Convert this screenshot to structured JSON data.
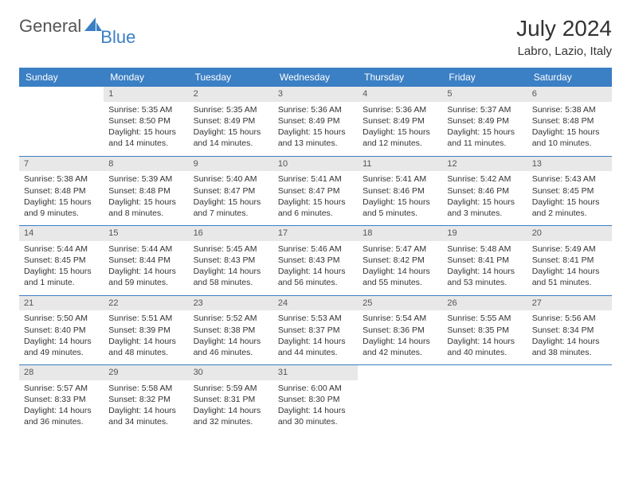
{
  "brand": {
    "text1": "General",
    "text2": "Blue"
  },
  "colors": {
    "header_bg": "#3b7fc4",
    "header_text": "#ffffff",
    "daynum_bg": "#e8e8e8",
    "rule": "#3b7fc4",
    "body_text": "#333333",
    "page_bg": "#ffffff"
  },
  "title": "July 2024",
  "location": "Labro, Lazio, Italy",
  "day_headers": [
    "Sunday",
    "Monday",
    "Tuesday",
    "Wednesday",
    "Thursday",
    "Friday",
    "Saturday"
  ],
  "weeks": [
    [
      {
        "empty": true
      },
      {
        "n": "1",
        "sunrise": "5:35 AM",
        "sunset": "8:50 PM",
        "daylight": "15 hours and 14 minutes."
      },
      {
        "n": "2",
        "sunrise": "5:35 AM",
        "sunset": "8:49 PM",
        "daylight": "15 hours and 14 minutes."
      },
      {
        "n": "3",
        "sunrise": "5:36 AM",
        "sunset": "8:49 PM",
        "daylight": "15 hours and 13 minutes."
      },
      {
        "n": "4",
        "sunrise": "5:36 AM",
        "sunset": "8:49 PM",
        "daylight": "15 hours and 12 minutes."
      },
      {
        "n": "5",
        "sunrise": "5:37 AM",
        "sunset": "8:49 PM",
        "daylight": "15 hours and 11 minutes."
      },
      {
        "n": "6",
        "sunrise": "5:38 AM",
        "sunset": "8:48 PM",
        "daylight": "15 hours and 10 minutes."
      }
    ],
    [
      {
        "n": "7",
        "sunrise": "5:38 AM",
        "sunset": "8:48 PM",
        "daylight": "15 hours and 9 minutes."
      },
      {
        "n": "8",
        "sunrise": "5:39 AM",
        "sunset": "8:48 PM",
        "daylight": "15 hours and 8 minutes."
      },
      {
        "n": "9",
        "sunrise": "5:40 AM",
        "sunset": "8:47 PM",
        "daylight": "15 hours and 7 minutes."
      },
      {
        "n": "10",
        "sunrise": "5:41 AM",
        "sunset": "8:47 PM",
        "daylight": "15 hours and 6 minutes."
      },
      {
        "n": "11",
        "sunrise": "5:41 AM",
        "sunset": "8:46 PM",
        "daylight": "15 hours and 5 minutes."
      },
      {
        "n": "12",
        "sunrise": "5:42 AM",
        "sunset": "8:46 PM",
        "daylight": "15 hours and 3 minutes."
      },
      {
        "n": "13",
        "sunrise": "5:43 AM",
        "sunset": "8:45 PM",
        "daylight": "15 hours and 2 minutes."
      }
    ],
    [
      {
        "n": "14",
        "sunrise": "5:44 AM",
        "sunset": "8:45 PM",
        "daylight": "15 hours and 1 minute."
      },
      {
        "n": "15",
        "sunrise": "5:44 AM",
        "sunset": "8:44 PM",
        "daylight": "14 hours and 59 minutes."
      },
      {
        "n": "16",
        "sunrise": "5:45 AM",
        "sunset": "8:43 PM",
        "daylight": "14 hours and 58 minutes."
      },
      {
        "n": "17",
        "sunrise": "5:46 AM",
        "sunset": "8:43 PM",
        "daylight": "14 hours and 56 minutes."
      },
      {
        "n": "18",
        "sunrise": "5:47 AM",
        "sunset": "8:42 PM",
        "daylight": "14 hours and 55 minutes."
      },
      {
        "n": "19",
        "sunrise": "5:48 AM",
        "sunset": "8:41 PM",
        "daylight": "14 hours and 53 minutes."
      },
      {
        "n": "20",
        "sunrise": "5:49 AM",
        "sunset": "8:41 PM",
        "daylight": "14 hours and 51 minutes."
      }
    ],
    [
      {
        "n": "21",
        "sunrise": "5:50 AM",
        "sunset": "8:40 PM",
        "daylight": "14 hours and 49 minutes."
      },
      {
        "n": "22",
        "sunrise": "5:51 AM",
        "sunset": "8:39 PM",
        "daylight": "14 hours and 48 minutes."
      },
      {
        "n": "23",
        "sunrise": "5:52 AM",
        "sunset": "8:38 PM",
        "daylight": "14 hours and 46 minutes."
      },
      {
        "n": "24",
        "sunrise": "5:53 AM",
        "sunset": "8:37 PM",
        "daylight": "14 hours and 44 minutes."
      },
      {
        "n": "25",
        "sunrise": "5:54 AM",
        "sunset": "8:36 PM",
        "daylight": "14 hours and 42 minutes."
      },
      {
        "n": "26",
        "sunrise": "5:55 AM",
        "sunset": "8:35 PM",
        "daylight": "14 hours and 40 minutes."
      },
      {
        "n": "27",
        "sunrise": "5:56 AM",
        "sunset": "8:34 PM",
        "daylight": "14 hours and 38 minutes."
      }
    ],
    [
      {
        "n": "28",
        "sunrise": "5:57 AM",
        "sunset": "8:33 PM",
        "daylight": "14 hours and 36 minutes."
      },
      {
        "n": "29",
        "sunrise": "5:58 AM",
        "sunset": "8:32 PM",
        "daylight": "14 hours and 34 minutes."
      },
      {
        "n": "30",
        "sunrise": "5:59 AM",
        "sunset": "8:31 PM",
        "daylight": "14 hours and 32 minutes."
      },
      {
        "n": "31",
        "sunrise": "6:00 AM",
        "sunset": "8:30 PM",
        "daylight": "14 hours and 30 minutes."
      },
      {
        "empty": true
      },
      {
        "empty": true
      },
      {
        "empty": true
      }
    ]
  ],
  "labels": {
    "sunrise": "Sunrise:",
    "sunset": "Sunset:",
    "daylight": "Daylight:"
  }
}
